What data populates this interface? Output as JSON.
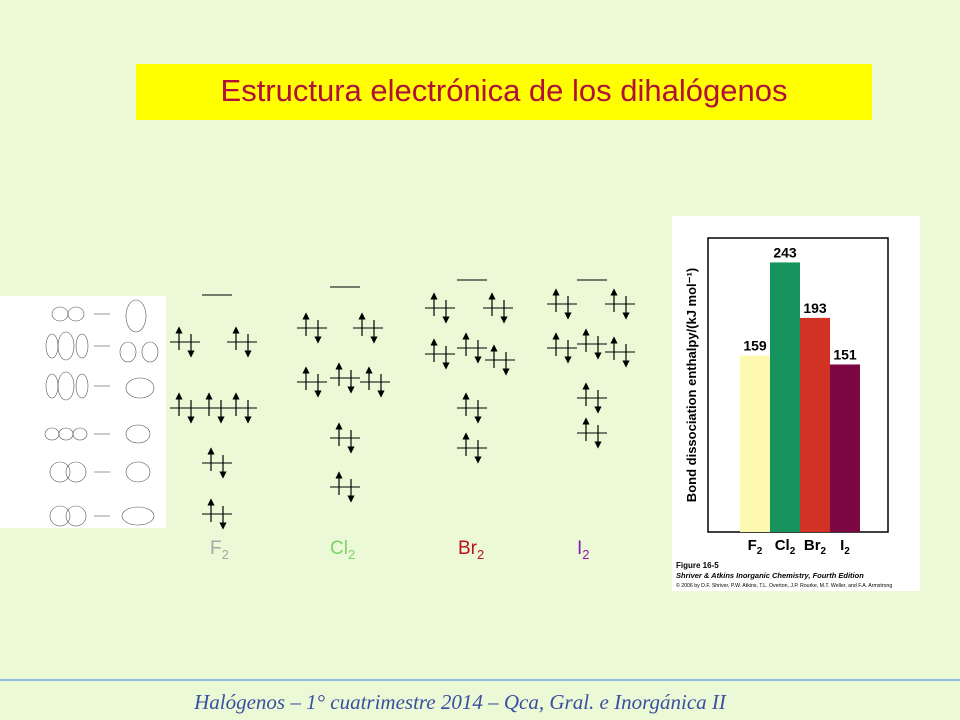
{
  "slide": {
    "title": "Estructura electrónica de los dihalógenos",
    "footer": "Halógenos – 1° cuatrimestre 2014 – Qca, Gral. e Inorgánica II"
  },
  "orbital_diagram": {
    "molecules": [
      {
        "name": "F",
        "sub": "2",
        "color": "#a7a7a7"
      },
      {
        "name": "Cl",
        "sub": "2",
        "color": "#7ad36a"
      },
      {
        "name": "Br",
        "sub": "2",
        "color": "#b8121d"
      },
      {
        "name": "I",
        "sub": "2",
        "color": "#8c1bb0"
      }
    ]
  },
  "chart_data": {
    "type": "bar",
    "categories": [
      "F2",
      "Cl2",
      "Br2",
      "I2"
    ],
    "category_labels": [
      {
        "name": "F",
        "sub": "2"
      },
      {
        "name": "Cl",
        "sub": "2"
      },
      {
        "name": "Br",
        "sub": "2"
      },
      {
        "name": "I",
        "sub": "2"
      }
    ],
    "values": [
      159,
      243,
      193,
      151
    ],
    "data_labels": [
      "159",
      "243",
      "193",
      "151"
    ],
    "colors": [
      "#fdf9b0",
      "#17935d",
      "#d23223",
      "#7c0743"
    ],
    "ylabel": "Bond dissociation enthalpy/(kJ mol⁻¹)",
    "ylim": [
      0,
      265
    ],
    "grid": false,
    "caption": {
      "figure": "Figure 16-5",
      "book": "Shriver & Atkins Inorganic Chemistry, Fourth Edition",
      "copyright": "© 2006 by D.F. Shriver, P.W. Atkins, T.L. Overton, J.P. Rourke, M.T. Weller, and F.A. Armstrong"
    }
  }
}
